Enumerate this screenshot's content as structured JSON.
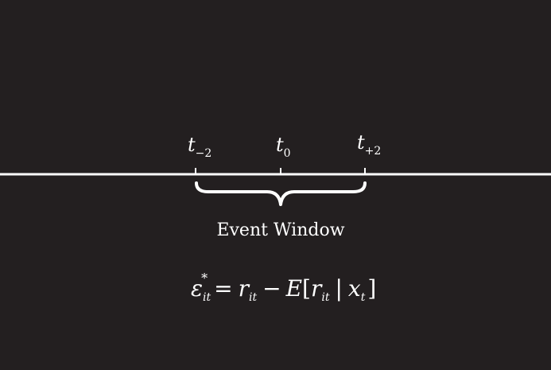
{
  "colors": {
    "background": "#231f20",
    "foreground": "#ffffff"
  },
  "timeline": {
    "ticks": [
      {
        "base": "t",
        "subscript": "−2"
      },
      {
        "base": "t",
        "subscript": "0"
      },
      {
        "base": "t",
        "subscript": "+2"
      }
    ]
  },
  "brace_label": "Event Window",
  "equation": {
    "epsilon": "ε",
    "epsilon_sub": "it",
    "epsilon_sup": "*",
    "equals": "=",
    "r1": "r",
    "r1_sub": "it",
    "minus": "−",
    "expect": "E",
    "lbracket": "[",
    "r2": "r",
    "r2_sub": "it",
    "bar": "|",
    "x": "x",
    "x_sub": "t",
    "rbracket": "]"
  }
}
